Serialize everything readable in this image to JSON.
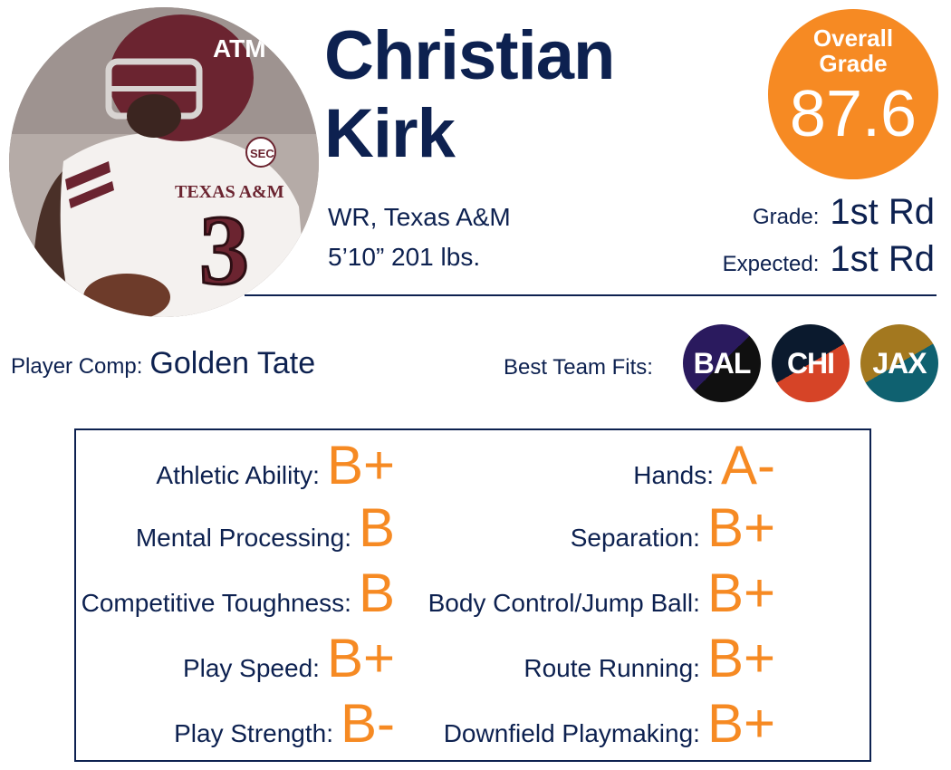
{
  "player": {
    "first_name": "Christian",
    "last_name": "Kirk",
    "position_school": "WR, Texas A&M",
    "size": "5’10” 201 lbs."
  },
  "overall": {
    "label_line1": "Overall",
    "label_line2": "Grade",
    "value": "87.6"
  },
  "grade": {
    "label": "Grade:",
    "value": "1st Rd"
  },
  "expected": {
    "label": "Expected:",
    "value": "1st Rd"
  },
  "comp": {
    "label": "Player Comp:",
    "value": "Golden Tate"
  },
  "fits": {
    "label": "Best Team Fits:",
    "teams": [
      "BAL",
      "CHI",
      "JAX"
    ]
  },
  "traits_left": [
    {
      "label": "Athletic Ability:",
      "grade": "B+"
    },
    {
      "label": "Mental Processing:",
      "grade": "B"
    },
    {
      "label": "Competitive Toughness:",
      "grade": "B"
    },
    {
      "label": "Play Speed:",
      "grade": "B+"
    },
    {
      "label": "Play Strength:",
      "grade": "B-"
    }
  ],
  "traits_right": [
    {
      "label": "Hands:",
      "grade": "A-"
    },
    {
      "label": "Separation:",
      "grade": "B+"
    },
    {
      "label": "Body Control/Jump Ball:",
      "grade": "B+"
    },
    {
      "label": "Route Running:",
      "grade": "B+"
    },
    {
      "label": "Downfield Playmaking:",
      "grade": "B+"
    }
  ],
  "photo": {
    "jersey_text": "TEXAS A&M",
    "jersey_number": "3",
    "helmet_text": "ATM",
    "patch_text": "SEC"
  },
  "colors": {
    "navy": "#0d2150",
    "orange": "#f68a23",
    "maroon": "#6b2430"
  }
}
